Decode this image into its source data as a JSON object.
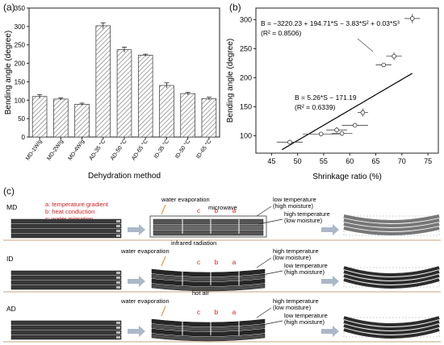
{
  "panel_a_label": "(a)",
  "panel_b_label": "(b)",
  "panel_c_label": "(c)",
  "chart_data": [
    {
      "type": "bar",
      "categories": [
        "MD-1W/g",
        "MD-2W/g",
        "MD-4W/g",
        "AD-35 °C",
        "AD-50 °C",
        "AD-65 °C",
        "ID-35 °C",
        "ID-50 °C",
        "ID-65 °C"
      ],
      "values": [
        110,
        103,
        89,
        302,
        237,
        222,
        140,
        118,
        104
      ],
      "errors": [
        5,
        3,
        3,
        8,
        7,
        3,
        7,
        3,
        4
      ],
      "xlabel": "Dehydration method",
      "ylabel": "Bending angle (degree)",
      "ylim": [
        0,
        350
      ],
      "yticks": [
        0,
        50,
        100,
        150,
        200,
        250,
        300,
        350
      ],
      "fill": "hatched gray",
      "grid": false
    },
    {
      "type": "scatter",
      "xlabel": "Shrinkage ratio (%)",
      "ylabel": "Bending angle (degree)",
      "xlim": [
        42,
        77
      ],
      "ylim": [
        70,
        320
      ],
      "xticks": [
        45,
        50,
        55,
        60,
        65,
        70,
        75
      ],
      "yticks": [
        100,
        150,
        200,
        250,
        300
      ],
      "points": [
        {
          "x": 48.5,
          "y": 89,
          "xerr": 2.5,
          "yerr": 3
        },
        {
          "x": 54.5,
          "y": 103,
          "xerr": 3.5,
          "yerr": 3
        },
        {
          "x": 57.5,
          "y": 110,
          "xerr": 2,
          "yerr": 5
        },
        {
          "x": 58.5,
          "y": 104,
          "xerr": 2,
          "yerr": 4
        },
        {
          "x": 61,
          "y": 118,
          "xerr": 2.5,
          "yerr": 3
        },
        {
          "x": 62.5,
          "y": 140,
          "xerr": 1,
          "yerr": 7
        },
        {
          "x": 66.5,
          "y": 222,
          "xerr": 1.5,
          "yerr": 3
        },
        {
          "x": 68.5,
          "y": 237,
          "xerr": 1.5,
          "yerr": 7
        },
        {
          "x": 72,
          "y": 302,
          "xerr": 1.5,
          "yerr": 8
        }
      ],
      "fits": [
        {
          "kind": "linear",
          "coefficients": [
            -171.19,
            5.26
          ],
          "x_range": [
            47,
            72
          ],
          "style": "solid",
          "equation": "B = 5.26*S − 171.19",
          "r2": "(R² = 0.6339)"
        },
        {
          "kind": "cubic",
          "coefficients": [
            -3220.23,
            194.71,
            -3.83,
            0.03
          ],
          "x_range": [
            47,
            71.3
          ],
          "style": "dashed",
          "equation": "B =  −3220.23 + 194.71*S − 3.83*S² + 0.03*S³",
          "r2": "(R² = 0.8506)"
        }
      ]
    }
  ],
  "figure_c": {
    "legend": [
      "a: temperature gradient",
      "b: heat conduction",
      "c: water migration"
    ],
    "colors": {
      "legend": "#cc2222",
      "abc": "#cc2222",
      "arrow_orange": "#e08a2e",
      "slab": "#3a3a3a",
      "floor": "#c9a37c"
    },
    "rows": [
      {
        "label": "MD",
        "water": "water evaporation",
        "source": "microwave",
        "low": "low temperature\n(high moisture)",
        "high": "high temperature\n(low moisture)",
        "abc": [
          "c",
          "b",
          "a"
        ]
      },
      {
        "label": "ID",
        "water": "water evaporation",
        "source": "infrared radiation",
        "low": "high temperature\n(low moisture)",
        "high": "low temperature\n(high moisture)",
        "abc": [
          "c",
          "b",
          "a"
        ]
      },
      {
        "label": "AD",
        "water": "water evaporation",
        "source": "hot air",
        "low": "high temperature\n(low moisture)",
        "high": "low temperature\n(high moisture)",
        "abc": [
          "c",
          "b",
          "a"
        ]
      }
    ]
  }
}
